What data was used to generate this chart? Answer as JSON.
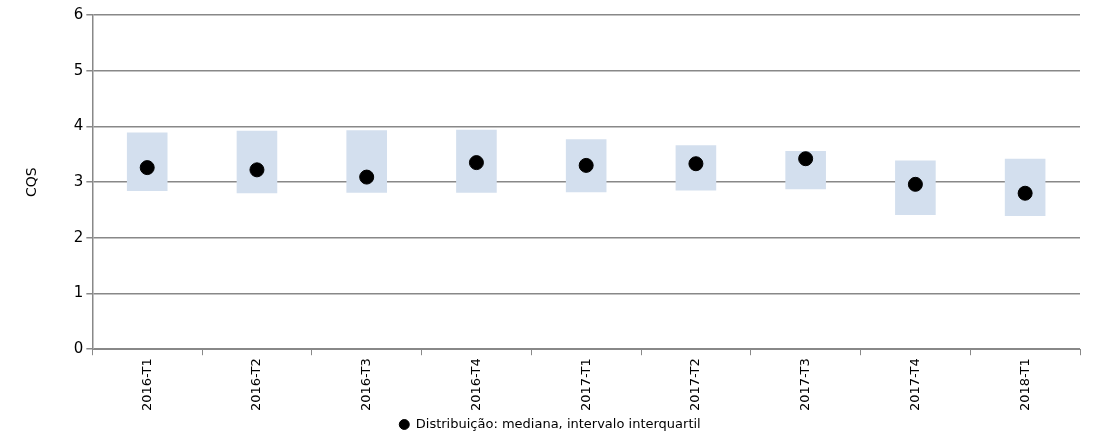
{
  "chart_data": {
    "type": "bar",
    "ylabel": "CQS",
    "categories": [
      "2016-T1",
      "2016-T2",
      "2016-T3",
      "2016-T4",
      "2017-T1",
      "2017-T2",
      "2017-T3",
      "2017-T4",
      "2018-T1"
    ],
    "series": [
      {
        "color": "#d3dfee",
        "base": [
          2.84,
          2.8,
          2.81,
          2.81,
          2.82,
          2.85,
          2.87,
          2.41,
          2.39
        ],
        "values": [
          1.05,
          1.12,
          1.12,
          1.13,
          0.95,
          0.81,
          0.69,
          0.98,
          1.03
        ]
      },
      {
        "type": "scatter",
        "name": "Distribuição: mediana, intervalo interquartil",
        "color": "#000000",
        "values": [
          3.26,
          3.22,
          3.09,
          3.35,
          3.3,
          3.33,
          3.42,
          2.96,
          2.8
        ]
      }
    ],
    "ylim": [
      0,
      6
    ],
    "yticks": [
      0,
      1,
      2,
      3,
      4,
      5,
      6
    ],
    "grid": "y",
    "legend": "bottom",
    "marker": "circle"
  }
}
